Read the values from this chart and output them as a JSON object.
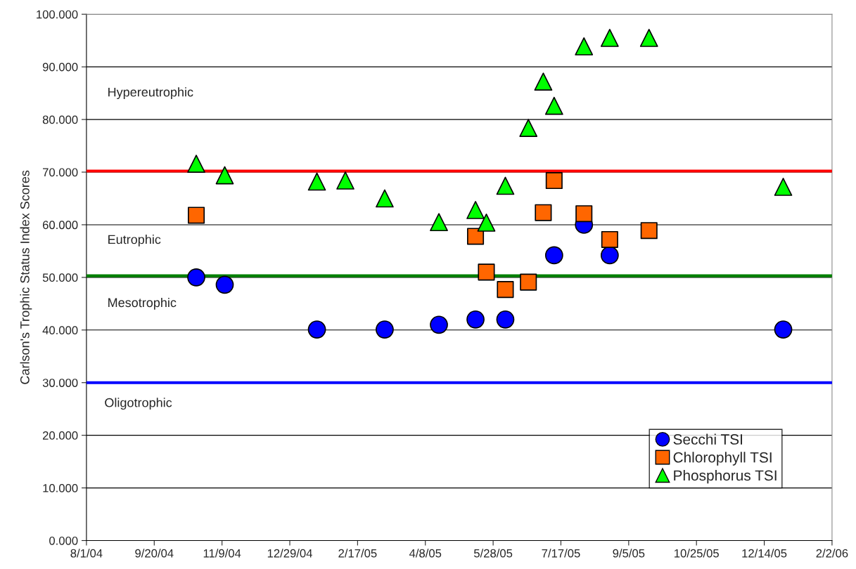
{
  "chart_data": {
    "type": "scatter",
    "ylabel": "Carlson's Trophic Status Index Scores",
    "xlim": [
      "2004-08-01",
      "2006-02-02"
    ],
    "xticks": [
      {
        "value": "2004-08-01",
        "label": "8/1/04"
      },
      {
        "value": "2004-09-20",
        "label": "9/20/04"
      },
      {
        "value": "2004-11-09",
        "label": "11/9/04"
      },
      {
        "value": "2004-12-29",
        "label": "12/29/04"
      },
      {
        "value": "2005-02-17",
        "label": "2/17/05"
      },
      {
        "value": "2005-04-08",
        "label": "4/8/05"
      },
      {
        "value": "2005-05-28",
        "label": "5/28/05"
      },
      {
        "value": "2005-07-17",
        "label": "7/17/05"
      },
      {
        "value": "2005-09-05",
        "label": "9/5/05"
      },
      {
        "value": "2005-10-25",
        "label": "10/25/05"
      },
      {
        "value": "2005-12-14",
        "label": "12/14/05"
      },
      {
        "value": "2006-02-02",
        "label": "2/2/06"
      }
    ],
    "ylim": [
      0,
      100
    ],
    "yticks": [
      {
        "value": 0,
        "label": "0.000"
      },
      {
        "value": 10,
        "label": "10.000"
      },
      {
        "value": 20,
        "label": "20.000"
      },
      {
        "value": 30,
        "label": "30.000"
      },
      {
        "value": 40,
        "label": "40.000"
      },
      {
        "value": 50,
        "label": "50.000"
      },
      {
        "value": 60,
        "label": "60.000"
      },
      {
        "value": 70,
        "label": "70.000"
      },
      {
        "value": 80,
        "label": "80.000"
      },
      {
        "value": 90,
        "label": "90.000"
      },
      {
        "value": 100,
        "label": "100.000"
      }
    ],
    "grid": "y",
    "legend": "bottom right",
    "ref_lines": [
      {
        "axis": "y",
        "value": 70.2,
        "color": "#ff0000"
      },
      {
        "axis": "y",
        "value": 50.3,
        "color": "#008000"
      },
      {
        "axis": "y",
        "value": 30,
        "color": "#0000ff"
      }
    ],
    "annotations": [
      "Hypereutrophic",
      "Eutrophic",
      "Mesotrophic",
      "Oligotrophic"
    ],
    "series": [
      {
        "name": "Secchi TSI",
        "color": "#0000ff",
        "marker": "circle",
        "x": [
          "2004-10-21",
          "2004-11-11",
          "2005-01-18",
          "2005-03-09",
          "2005-04-18",
          "2005-05-15",
          "2005-06-06",
          "2005-07-12",
          "2005-08-03",
          "2005-08-22",
          "2005-12-28"
        ],
        "values": [
          50.0,
          48.6,
          40.1,
          40.1,
          41.0,
          42.0,
          42.0,
          54.2,
          60.0,
          54.2,
          40.1
        ]
      },
      {
        "name": "Chlorophyll TSI",
        "color": "#ff6600",
        "marker": "square",
        "x": [
          "2004-10-21",
          "2005-05-15",
          "2005-05-23",
          "2005-06-06",
          "2005-06-23",
          "2005-07-04",
          "2005-07-12",
          "2005-08-03",
          "2005-08-22",
          "2005-09-20"
        ],
        "values": [
          61.8,
          57.8,
          51.0,
          47.7,
          49.1,
          62.3,
          68.4,
          62.1,
          57.2,
          58.9
        ]
      },
      {
        "name": "Phosphorus TSI",
        "color": "#00ff00",
        "marker": "triangle",
        "x": [
          "2004-10-21",
          "2004-11-11",
          "2005-01-18",
          "2005-02-08",
          "2005-03-09",
          "2005-04-18",
          "2005-05-15",
          "2005-05-23",
          "2005-06-06",
          "2005-06-23",
          "2005-07-04",
          "2005-07-12",
          "2005-08-03",
          "2005-08-22",
          "2005-09-20",
          "2005-12-28"
        ],
        "values": [
          71.6,
          69.4,
          68.2,
          68.4,
          65.0,
          60.5,
          62.8,
          60.4,
          67.4,
          78.4,
          87.2,
          82.6,
          93.9,
          95.5,
          95.5,
          67.2
        ]
      }
    ]
  }
}
